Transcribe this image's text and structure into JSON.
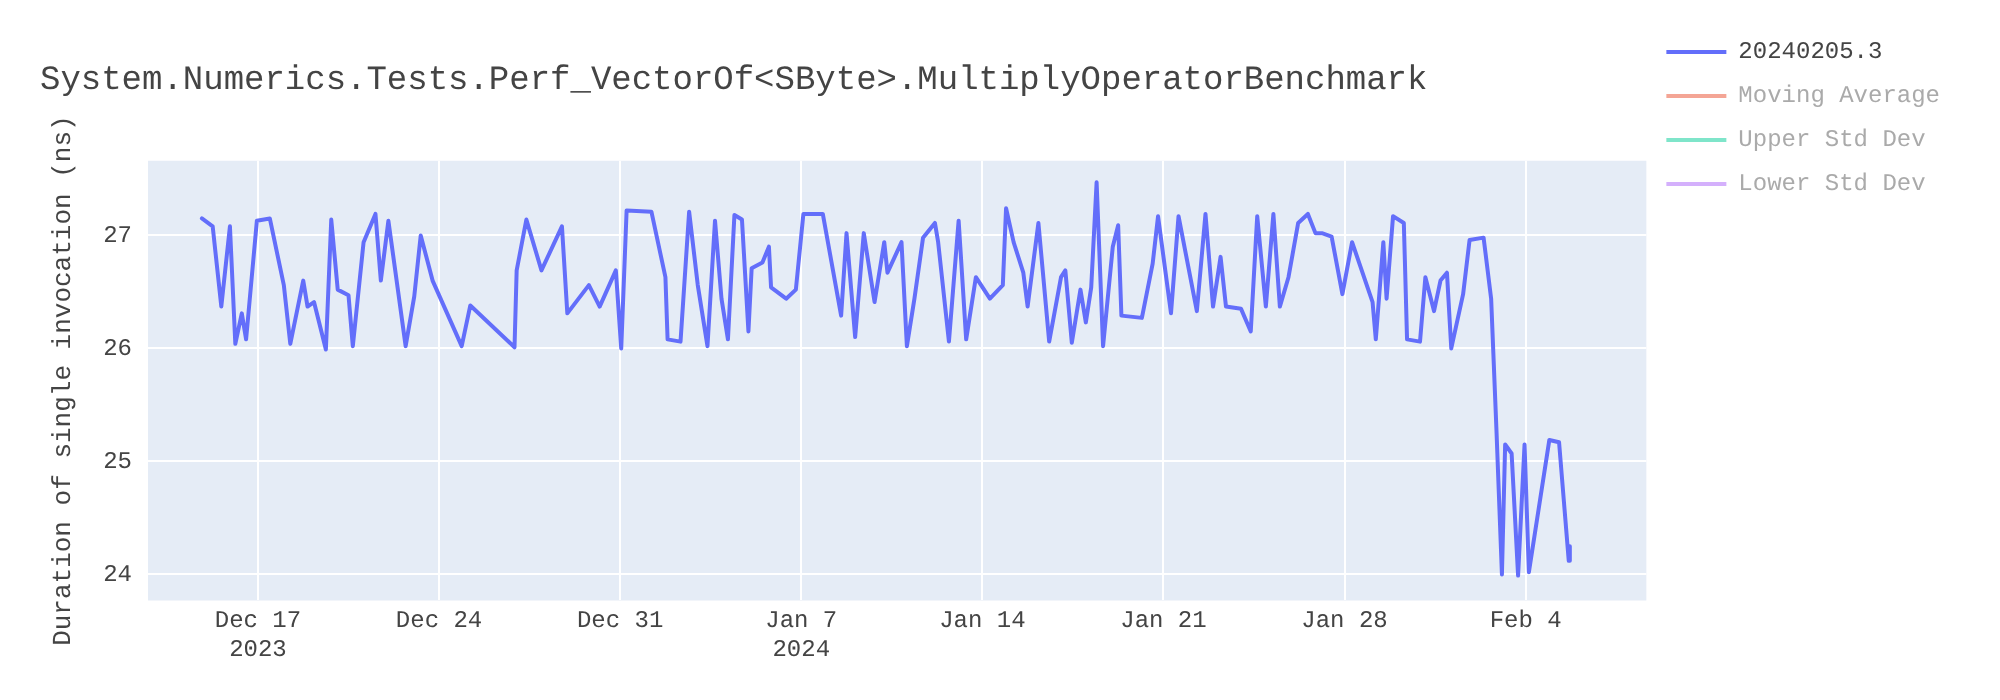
{
  "chart_data": {
    "type": "line",
    "title": "System.Numerics.Tests.Perf_VectorOf<SByte>.MultiplyOperatorBenchmark",
    "ylabel": "Duration of single invocation (ns)",
    "xlim": [
      "2023-12-12T18:00",
      "2024-02-08T16:00"
    ],
    "xticks": [
      {
        "value": "2023-12-17",
        "label": "Dec 17\n2023"
      },
      {
        "value": "2023-12-24",
        "label": "Dec 24"
      },
      {
        "value": "2023-12-31",
        "label": "Dec 31"
      },
      {
        "value": "2024-01-07",
        "label": "Jan 7\n2024"
      },
      {
        "value": "2024-01-14",
        "label": "Jan 14"
      },
      {
        "value": "2024-01-21",
        "label": "Jan 21"
      },
      {
        "value": "2024-01-28",
        "label": "Jan 28"
      },
      {
        "value": "2024-02-04",
        "label": "Feb 4"
      }
    ],
    "ylim": [
      23.77,
      27.66
    ],
    "yticks": [
      24,
      25,
      26,
      27
    ],
    "grid": true,
    "legend": "top right",
    "series": [
      {
        "name": "20240205.3",
        "color": "#636efa",
        "x": [
          "2023-12-14T20:00",
          "2023-12-15T06:00",
          "2023-12-15T14:00",
          "2023-12-15T22:00",
          "2023-12-16T03:00",
          "2023-12-16T09:00",
          "2023-12-16T13:00",
          "2023-12-16T23:00",
          "2023-12-17T11:00",
          "2023-12-18T00:00",
          "2023-12-18T06:00",
          "2023-12-18T18:00",
          "2023-12-18T22:00",
          "2023-12-19T04:00",
          "2023-12-19T15:00",
          "2023-12-19T20:00",
          "2023-12-20T02:00",
          "2023-12-20T12:00",
          "2023-12-20T16:00",
          "2023-12-21T02:00",
          "2023-12-21T13:00",
          "2023-12-21T18:00",
          "2023-12-22T01:00",
          "2023-12-22T17:00",
          "2023-12-23T01:00",
          "2023-12-23T07:00",
          "2023-12-23T18:00",
          "2023-12-24T21:00",
          "2023-12-25T05:00",
          "2023-12-26T22:00",
          "2023-12-27T00:00",
          "2023-12-27T09:00",
          "2023-12-27T23:00",
          "2023-12-28T18:00",
          "2023-12-28T23:00",
          "2023-12-29T19:00",
          "2023-12-30T05:00",
          "2023-12-30T20:00",
          "2023-12-31T01:00",
          "2023-12-31T06:00",
          "2024-01-01T05:00",
          "2024-01-01T18:00",
          "2024-01-01T20:00",
          "2024-01-02T08:00",
          "2024-01-02T16:00",
          "2024-01-03T00:00",
          "2024-01-03T09:00",
          "2024-01-03T16:00",
          "2024-01-03T22:00",
          "2024-01-04T04:00",
          "2024-01-04T10:00",
          "2024-01-04T17:00",
          "2024-01-04T23:00",
          "2024-01-05T02:00",
          "2024-01-05T12:00",
          "2024-01-05T18:00",
          "2024-01-05T20:00",
          "2024-01-06T10:00",
          "2024-01-06T19:00",
          "2024-01-07T02:00",
          "2024-01-07T20:00",
          "2024-01-08T13:00",
          "2024-01-08T18:00",
          "2024-01-09T02:00",
          "2024-01-09T10:00",
          "2024-01-09T20:00",
          "2024-01-10T05:00",
          "2024-01-10T08:00",
          "2024-01-10T21:00",
          "2024-01-11T02:00",
          "2024-01-11T09:00",
          "2024-01-11T17:00",
          "2024-01-12T04:00",
          "2024-01-12T07:00",
          "2024-01-12T17:00",
          "2024-01-13T02:00",
          "2024-01-13T09:00",
          "2024-01-13T18:00",
          "2024-01-14T07:00",
          "2024-01-14T19:00",
          "2024-01-14T22:00",
          "2024-01-15T05:00",
          "2024-01-15T14:00",
          "2024-01-15T18:00",
          "2024-01-16T04:00",
          "2024-01-16T14:00",
          "2024-01-17T01:00",
          "2024-01-17T05:00",
          "2024-01-17T11:00",
          "2024-01-17T19:00",
          "2024-01-18T00:00",
          "2024-01-18T05:00",
          "2024-01-18T10:00",
          "2024-01-18T16:00",
          "2024-01-19T01:00",
          "2024-01-19T06:00",
          "2024-01-19T09:00",
          "2024-01-20T04:00",
          "2024-01-20T14:00",
          "2024-01-20T19:00",
          "2024-01-21T07:00",
          "2024-01-21T14:00",
          "2024-01-22T07:00",
          "2024-01-22T15:00",
          "2024-01-22T22:00",
          "2024-01-23T05:00",
          "2024-01-23T10:00",
          "2024-01-24T00:00",
          "2024-01-24T09:00",
          "2024-01-24T15:00",
          "2024-01-24T23:00",
          "2024-01-25T06:00",
          "2024-01-25T12:00",
          "2024-01-25T20:00",
          "2024-01-26T05:00",
          "2024-01-26T14:00",
          "2024-01-26T21:00",
          "2024-01-27T03:00",
          "2024-01-27T12:00",
          "2024-01-27T22:00",
          "2024-01-28T07:00",
          "2024-01-29T02:00",
          "2024-01-29T05:00",
          "2024-01-29T12:00",
          "2024-01-29T15:00",
          "2024-01-29T21:00",
          "2024-01-30T07:00",
          "2024-01-30T10:00",
          "2024-01-30T22:00",
          "2024-01-31T03:00",
          "2024-01-31T11:00",
          "2024-01-31T17:00",
          "2024-01-31T23:00",
          "2024-02-01T03:00",
          "2024-02-01T14:00",
          "2024-02-01T20:00",
          "2024-02-02T09:00",
          "2024-02-02T16:00",
          "2024-02-02T21:00",
          "2024-02-03T02:00",
          "2024-02-03T05:00",
          "2024-02-03T11:00",
          "2024-02-03T17:00",
          "2024-02-03T23:00",
          "2024-02-04T03:00",
          "2024-02-04T22:00",
          "2024-02-05T07:00",
          "2024-02-05T16:00",
          "2024-02-05T17:00"
        ],
        "values": [
          27.15,
          27.08,
          26.37,
          27.08,
          26.04,
          26.31,
          26.08,
          27.13,
          27.15,
          26.56,
          26.04,
          26.6,
          26.37,
          26.41,
          25.99,
          27.14,
          26.52,
          26.47,
          26.02,
          26.94,
          27.19,
          26.6,
          27.13,
          26.02,
          26.46,
          27.0,
          26.6,
          26.02,
          26.38,
          26.01,
          26.69,
          27.14,
          26.69,
          27.08,
          26.31,
          26.56,
          26.37,
          26.69,
          26.0,
          27.22,
          27.21,
          26.63,
          26.08,
          26.06,
          27.21,
          26.56,
          26.02,
          27.13,
          26.44,
          26.08,
          27.18,
          27.14,
          26.15,
          26.71,
          26.76,
          26.9,
          26.54,
          26.44,
          26.52,
          27.19,
          27.19,
          26.29,
          27.02,
          26.1,
          27.02,
          26.41,
          26.94,
          26.67,
          26.94,
          26.02,
          26.44,
          26.98,
          27.11,
          26.94,
          26.06,
          27.13,
          26.08,
          26.63,
          26.44,
          26.56,
          27.24,
          26.94,
          26.67,
          26.37,
          27.11,
          26.06,
          26.63,
          26.69,
          26.05,
          26.52,
          26.23,
          26.54,
          27.47,
          26.02,
          26.9,
          27.09,
          26.29,
          26.27,
          26.75,
          27.17,
          26.31,
          27.17,
          26.33,
          27.19,
          26.37,
          26.81,
          26.37,
          26.35,
          26.15,
          27.17,
          26.37,
          27.19,
          26.37,
          26.63,
          27.11,
          27.19,
          27.02,
          27.02,
          26.99,
          26.48,
          26.94,
          26.41,
          26.08,
          26.94,
          26.44,
          27.17,
          27.11,
          26.08,
          26.06,
          26.63,
          26.33,
          26.6,
          26.67,
          26.0,
          26.48,
          26.96,
          26.98,
          26.44,
          25.26,
          24.0,
          25.15,
          25.07,
          23.99,
          25.15,
          24.02,
          25.19,
          25.17,
          24.12,
          24.25
        ]
      },
      {
        "name": "Moving Average",
        "color": "#f4a595"
      },
      {
        "name": "Upper Std Dev",
        "color": "#7fe5ca"
      },
      {
        "name": "Lower Std Dev",
        "color": "#d4b0fc"
      }
    ]
  }
}
